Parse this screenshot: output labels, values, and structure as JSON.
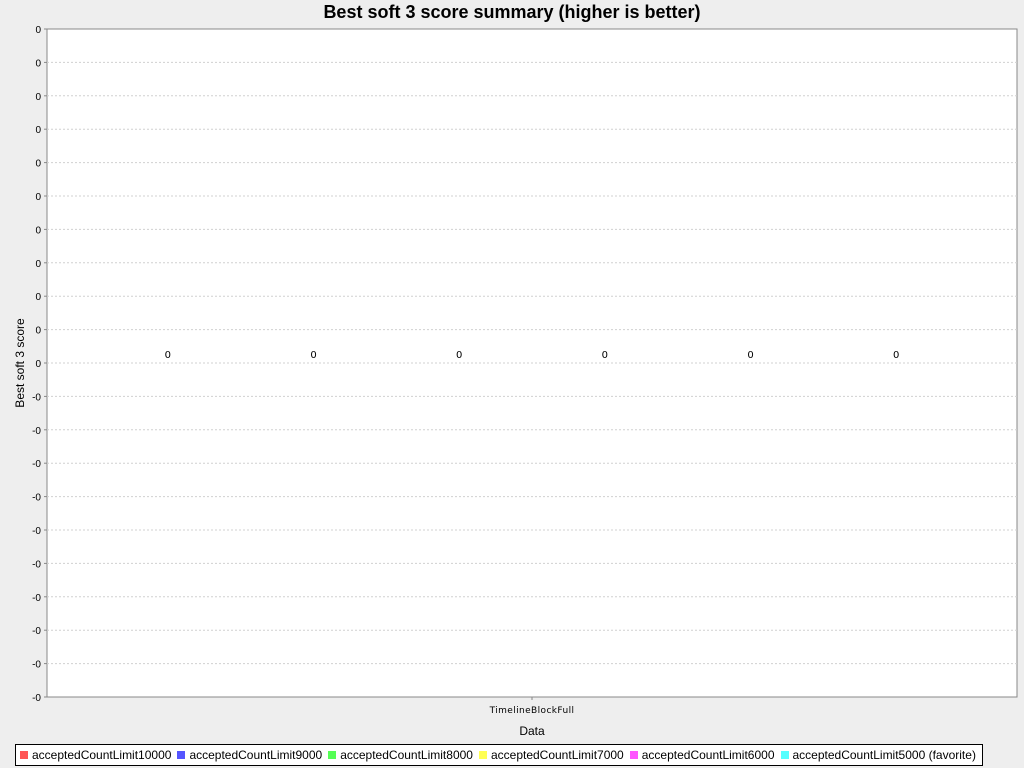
{
  "chart_data": {
    "type": "bar",
    "title": "Best soft 3 score summary (higher is better)",
    "xlabel": "Data",
    "ylabel": "Best soft 3 score",
    "categories": [
      "TimelineBlockFull"
    ],
    "y_tick_labels": [
      "0",
      "0",
      "0",
      "0",
      "0",
      "0",
      "0",
      "0",
      "0",
      "0",
      "0",
      "-0",
      "-0",
      "-0",
      "-0",
      "-0",
      "-0",
      "-0",
      "-0",
      "-0",
      "-0"
    ],
    "grid": true,
    "legend_position": "bottom",
    "series": [
      {
        "name": "acceptedCountLimit10000",
        "color": "#ff5555",
        "values": [
          0
        ],
        "data_label": "0"
      },
      {
        "name": "acceptedCountLimit9000",
        "color": "#5555ff",
        "values": [
          0
        ],
        "data_label": "0"
      },
      {
        "name": "acceptedCountLimit8000",
        "color": "#55ff55",
        "values": [
          0
        ],
        "data_label": "0"
      },
      {
        "name": "acceptedCountLimit7000",
        "color": "#ffff55",
        "values": [
          0
        ],
        "data_label": "0"
      },
      {
        "name": "acceptedCountLimit6000",
        "color": "#ff55ff",
        "values": [
          0
        ],
        "data_label": "0"
      },
      {
        "name": "acceptedCountLimit5000 (favorite)",
        "color": "#55ffff",
        "values": [
          0
        ],
        "data_label": "0"
      }
    ]
  }
}
